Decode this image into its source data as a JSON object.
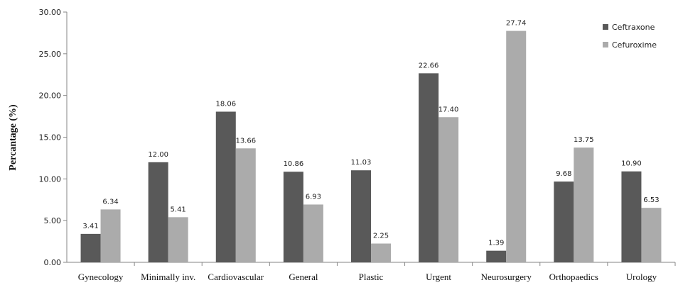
{
  "chart_data": {
    "type": "bar",
    "title": "",
    "xlabel": "",
    "ylabel": "Percantage (%)",
    "ylim": [
      0,
      30
    ],
    "y_ticks": [
      "0.00",
      "5.00",
      "10.00",
      "15.00",
      "20.00",
      "25.00",
      "30.00"
    ],
    "grid": false,
    "legend_position": "top-right",
    "categories": [
      "Gynecology",
      "Minimally inv.",
      "Cardiovascular",
      "General",
      "Plastic",
      "Urgent",
      "Neurosurgery",
      "Orthopaedics",
      "Urology"
    ],
    "series": [
      {
        "name": "Ceftraxone",
        "color": "#595959",
        "values": [
          3.41,
          12.0,
          18.06,
          10.86,
          11.03,
          22.66,
          1.39,
          9.68,
          10.9
        ],
        "labels": [
          "3.41",
          "12.00",
          "18.06",
          "10.86",
          "11.03",
          "22.66",
          "1.39",
          "9.68",
          "10.90"
        ]
      },
      {
        "name": "Cefuroxime",
        "color": "#ababab",
        "values": [
          6.34,
          5.41,
          13.66,
          6.93,
          2.25,
          17.4,
          27.74,
          13.75,
          6.53
        ],
        "labels": [
          "6.34",
          "5.41",
          "13.66",
          "6.93",
          "2.25",
          "17.40",
          "27.74",
          "13.75",
          "6.53"
        ]
      }
    ]
  }
}
